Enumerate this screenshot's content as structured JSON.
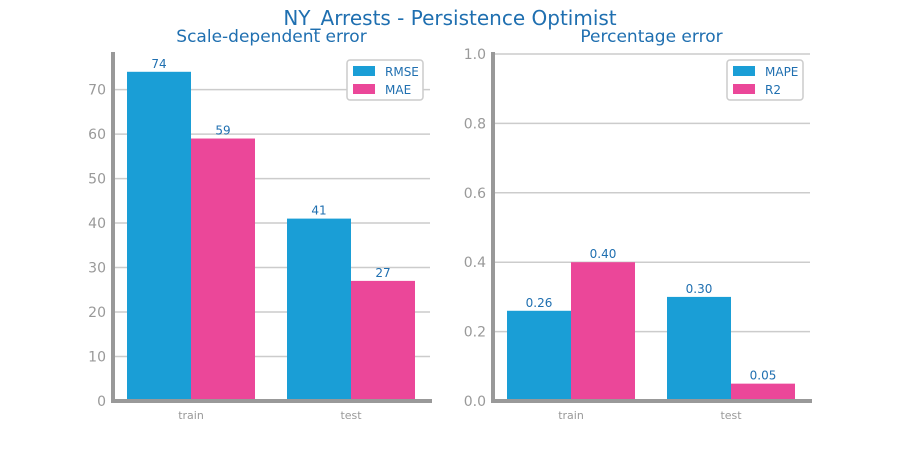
{
  "figure_title": "NY_Arrests - Persistence Optimist",
  "colors": {
    "title": "#1f6fb0",
    "axis": "#999999",
    "grid": "#cccccc",
    "label": "#1f6fb0",
    "series_a": "#1a9ed6",
    "series_b": "#eb4799"
  },
  "chart_data": [
    {
      "type": "bar",
      "title": "Scale-dependent error",
      "categories": [
        "train",
        "test"
      ],
      "series": [
        {
          "name": "RMSE",
          "values": [
            74,
            41
          ],
          "value_labels": [
            "74",
            "41"
          ]
        },
        {
          "name": "MAE",
          "values": [
            59,
            27
          ],
          "value_labels": [
            "59",
            "27"
          ]
        }
      ],
      "ylim": [
        0,
        78
      ],
      "yticks": [
        "0",
        "10",
        "20",
        "30",
        "40",
        "50",
        "60",
        "70"
      ],
      "ytick_values": [
        0,
        10,
        20,
        30,
        40,
        50,
        60,
        70
      ],
      "grid": true,
      "legend_position": "top-right"
    },
    {
      "type": "bar",
      "title": "Percentage error",
      "categories": [
        "train",
        "test"
      ],
      "series": [
        {
          "name": "MAPE",
          "values": [
            0.26,
            0.3
          ],
          "value_labels": [
            "0.26",
            "0.30"
          ]
        },
        {
          "name": "R2",
          "values": [
            0.4,
            0.05
          ],
          "value_labels": [
            "0.40",
            "0.05"
          ]
        }
      ],
      "ylim": [
        0,
        1.0
      ],
      "yticks": [
        "0.0",
        "0.2",
        "0.4",
        "0.6",
        "0.8",
        "1.0"
      ],
      "ytick_values": [
        0,
        0.2,
        0.4,
        0.6,
        0.8,
        1.0
      ],
      "grid": true,
      "legend_position": "top-right"
    }
  ]
}
